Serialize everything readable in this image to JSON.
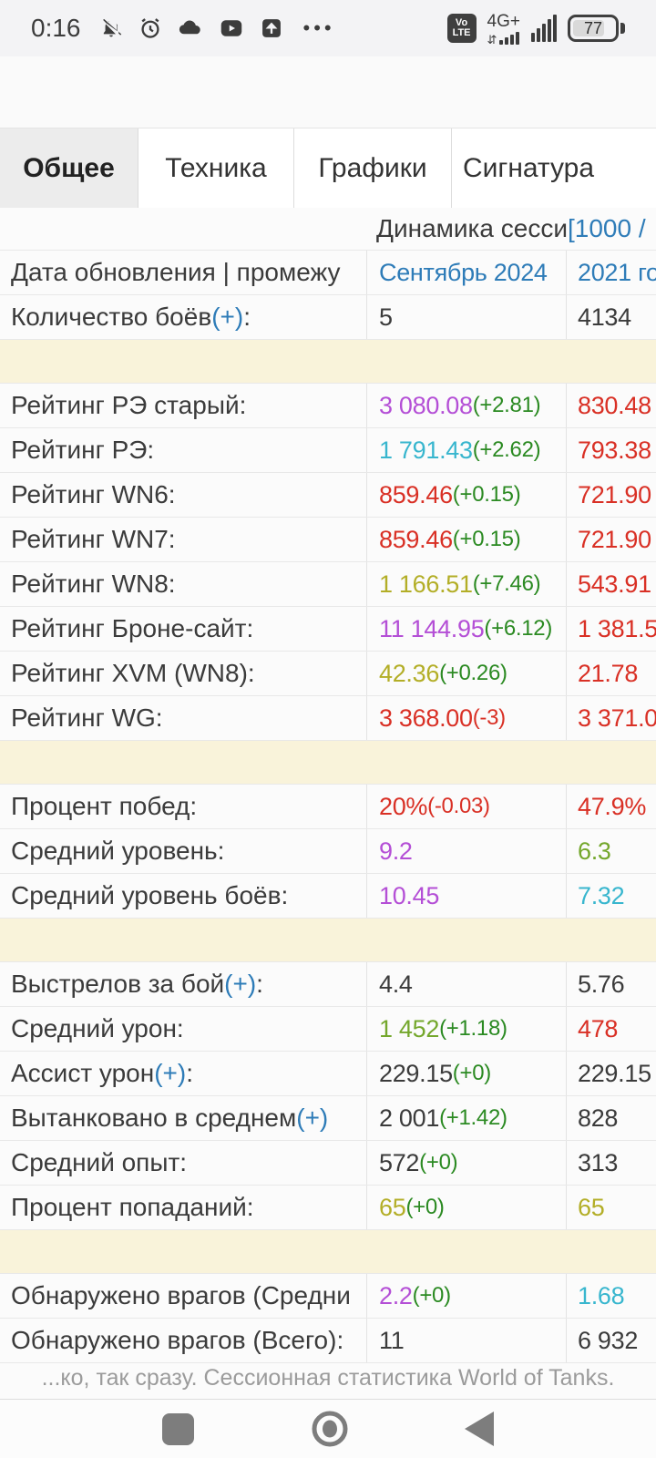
{
  "status_bar": {
    "time": "0:16",
    "more_dots": "•••",
    "volte_line1": "Vo",
    "volte_line2": "LTE",
    "network_type": "4G+",
    "battery_percent": "77"
  },
  "tabs": [
    {
      "label": "Общее",
      "active": true
    },
    {
      "label": "Техника",
      "active": false
    },
    {
      "label": "Графики",
      "active": false
    },
    {
      "label": "Сигнатура",
      "active": false
    }
  ],
  "colors": {
    "dark": "#3b3b3b",
    "red": "#d93025",
    "green": "#2b8a22",
    "lightgreen": "#74a72c",
    "purple": "#b44fd6",
    "cyan": "#38b6ce",
    "olive": "#b3ae27",
    "blue": "#2e7cb8"
  },
  "table": {
    "rows": [
      {
        "type": "title",
        "title": [
          {
            "t": "Динамика сесси ",
            "c": "dark"
          },
          {
            "t": "[1000 /",
            "c": "blue"
          }
        ]
      },
      {
        "label": [
          {
            "t": "Дата обновления | промежу",
            "c": "dark"
          }
        ],
        "session": [
          {
            "t": "Сентябрь 2024",
            "c": "blue"
          }
        ],
        "alltime": [
          {
            "t": "2021 го",
            "c": "blue"
          }
        ]
      },
      {
        "label": [
          {
            "t": "Количество боёв ",
            "c": "dark"
          },
          {
            "t": "(+)",
            "c": "blue"
          },
          {
            "t": ":",
            "c": "dark"
          }
        ],
        "session": [
          {
            "t": "5",
            "c": "dark"
          }
        ],
        "alltime": [
          {
            "t": "4134",
            "c": "dark"
          }
        ]
      },
      {
        "type": "spacer"
      },
      {
        "label": [
          {
            "t": "Рейтинг РЭ старый:",
            "c": "dark"
          }
        ],
        "session": [
          {
            "t": "3 080.08",
            "c": "purple"
          },
          {
            "t": " (+2.81)",
            "c": "green",
            "d": 1
          }
        ],
        "alltime": [
          {
            "t": "830.48",
            "c": "red"
          }
        ]
      },
      {
        "label": [
          {
            "t": "Рейтинг РЭ:",
            "c": "dark"
          }
        ],
        "session": [
          {
            "t": "1 791.43",
            "c": "cyan"
          },
          {
            "t": " (+2.62)",
            "c": "green",
            "d": 1
          }
        ],
        "alltime": [
          {
            "t": "793.38",
            "c": "red"
          }
        ]
      },
      {
        "label": [
          {
            "t": "Рейтинг WN6:",
            "c": "dark"
          }
        ],
        "session": [
          {
            "t": "859.46",
            "c": "red"
          },
          {
            "t": " (+0.15)",
            "c": "green",
            "d": 1
          }
        ],
        "alltime": [
          {
            "t": "721.90",
            "c": "red"
          }
        ]
      },
      {
        "label": [
          {
            "t": "Рейтинг WN7:",
            "c": "dark"
          }
        ],
        "session": [
          {
            "t": "859.46",
            "c": "red"
          },
          {
            "t": " (+0.15)",
            "c": "green",
            "d": 1
          }
        ],
        "alltime": [
          {
            "t": "721.90",
            "c": "red"
          }
        ]
      },
      {
        "label": [
          {
            "t": "Рейтинг WN8:",
            "c": "dark"
          }
        ],
        "session": [
          {
            "t": "1 166.51",
            "c": "olive"
          },
          {
            "t": " (+7.46)",
            "c": "green",
            "d": 1
          }
        ],
        "alltime": [
          {
            "t": "543.91",
            "c": "red"
          }
        ]
      },
      {
        "label": [
          {
            "t": "Рейтинг Броне-сайт:",
            "c": "dark"
          }
        ],
        "session": [
          {
            "t": "11 144.95",
            "c": "purple"
          },
          {
            "t": " (+6.12)",
            "c": "green",
            "d": 1
          }
        ],
        "alltime": [
          {
            "t": "1 381.5",
            "c": "red"
          }
        ]
      },
      {
        "label": [
          {
            "t": "Рейтинг XVM (WN8):",
            "c": "dark"
          }
        ],
        "session": [
          {
            "t": "42.36",
            "c": "olive"
          },
          {
            "t": " (+0.26)",
            "c": "green",
            "d": 1
          }
        ],
        "alltime": [
          {
            "t": "21.78",
            "c": "red"
          }
        ]
      },
      {
        "label": [
          {
            "t": "Рейтинг WG:",
            "c": "dark"
          }
        ],
        "session": [
          {
            "t": "3 368.00",
            "c": "red"
          },
          {
            "t": " (-3)",
            "c": "red",
            "d": 1
          }
        ],
        "alltime": [
          {
            "t": "3 371.0",
            "c": "red"
          }
        ]
      },
      {
        "type": "spacer"
      },
      {
        "label": [
          {
            "t": "Процент побед:",
            "c": "dark"
          }
        ],
        "session": [
          {
            "t": "20%",
            "c": "red"
          },
          {
            "t": " (-0.03)",
            "c": "red",
            "d": 1
          }
        ],
        "alltime": [
          {
            "t": "47.9%",
            "c": "red"
          }
        ]
      },
      {
        "label": [
          {
            "t": "Средний уровень:",
            "c": "dark"
          }
        ],
        "session": [
          {
            "t": "9.2",
            "c": "purple"
          }
        ],
        "alltime": [
          {
            "t": "6.3",
            "c": "lightgreen"
          }
        ]
      },
      {
        "label": [
          {
            "t": "Средний уровень боёв:",
            "c": "dark"
          }
        ],
        "session": [
          {
            "t": "10.45",
            "c": "purple"
          }
        ],
        "alltime": [
          {
            "t": "7.32",
            "c": "cyan"
          }
        ]
      },
      {
        "type": "spacer"
      },
      {
        "label": [
          {
            "t": "Выстрелов за бой ",
            "c": "dark"
          },
          {
            "t": "(+)",
            "c": "blue"
          },
          {
            "t": ":",
            "c": "dark"
          }
        ],
        "session": [
          {
            "t": "4.4",
            "c": "dark"
          }
        ],
        "alltime": [
          {
            "t": "5.76",
            "c": "dark"
          }
        ]
      },
      {
        "label": [
          {
            "t": "Средний урон:",
            "c": "dark"
          }
        ],
        "session": [
          {
            "t": "1 452",
            "c": "lightgreen"
          },
          {
            "t": " (+1.18)",
            "c": "green",
            "d": 1
          }
        ],
        "alltime": [
          {
            "t": "478",
            "c": "red"
          }
        ]
      },
      {
        "label": [
          {
            "t": "Ассист урон ",
            "c": "dark"
          },
          {
            "t": "(+)",
            "c": "blue"
          },
          {
            "t": ":",
            "c": "dark"
          }
        ],
        "session": [
          {
            "t": "229.15",
            "c": "dark"
          },
          {
            "t": " (+0)",
            "c": "green",
            "d": 1
          }
        ],
        "alltime": [
          {
            "t": "229.15",
            "c": "dark"
          }
        ]
      },
      {
        "label": [
          {
            "t": "Вытанковано в среднем ",
            "c": "dark"
          },
          {
            "t": "(+)",
            "c": "blue"
          }
        ],
        "session": [
          {
            "t": "2 001",
            "c": "dark"
          },
          {
            "t": " (+1.42)",
            "c": "green",
            "d": 1
          }
        ],
        "alltime": [
          {
            "t": "828",
            "c": "dark"
          }
        ]
      },
      {
        "label": [
          {
            "t": "Средний опыт:",
            "c": "dark"
          }
        ],
        "session": [
          {
            "t": "572",
            "c": "dark"
          },
          {
            "t": " (+0)",
            "c": "green",
            "d": 1
          }
        ],
        "alltime": [
          {
            "t": "313",
            "c": "dark"
          }
        ]
      },
      {
        "label": [
          {
            "t": "Процент попаданий:",
            "c": "dark"
          }
        ],
        "session": [
          {
            "t": "65",
            "c": "olive"
          },
          {
            "t": " (+0)",
            "c": "green",
            "d": 1
          }
        ],
        "alltime": [
          {
            "t": "65",
            "c": "olive"
          }
        ]
      },
      {
        "type": "spacer"
      },
      {
        "label": [
          {
            "t": "Обнаружено врагов (Средни",
            "c": "dark"
          }
        ],
        "session": [
          {
            "t": "2.2",
            "c": "purple"
          },
          {
            "t": " (+0)",
            "c": "green",
            "d": 1
          }
        ],
        "alltime": [
          {
            "t": "1.68",
            "c": "cyan"
          }
        ]
      },
      {
        "label": [
          {
            "t": "Обнаружено врагов (Всего):",
            "c": "dark"
          }
        ],
        "session": [
          {
            "t": "11",
            "c": "dark"
          }
        ],
        "alltime": [
          {
            "t": "6 932",
            "c": "dark"
          }
        ]
      }
    ]
  },
  "footer": {
    "text": "...ко, так сразу. Сессионная статистика World of Tanks."
  }
}
